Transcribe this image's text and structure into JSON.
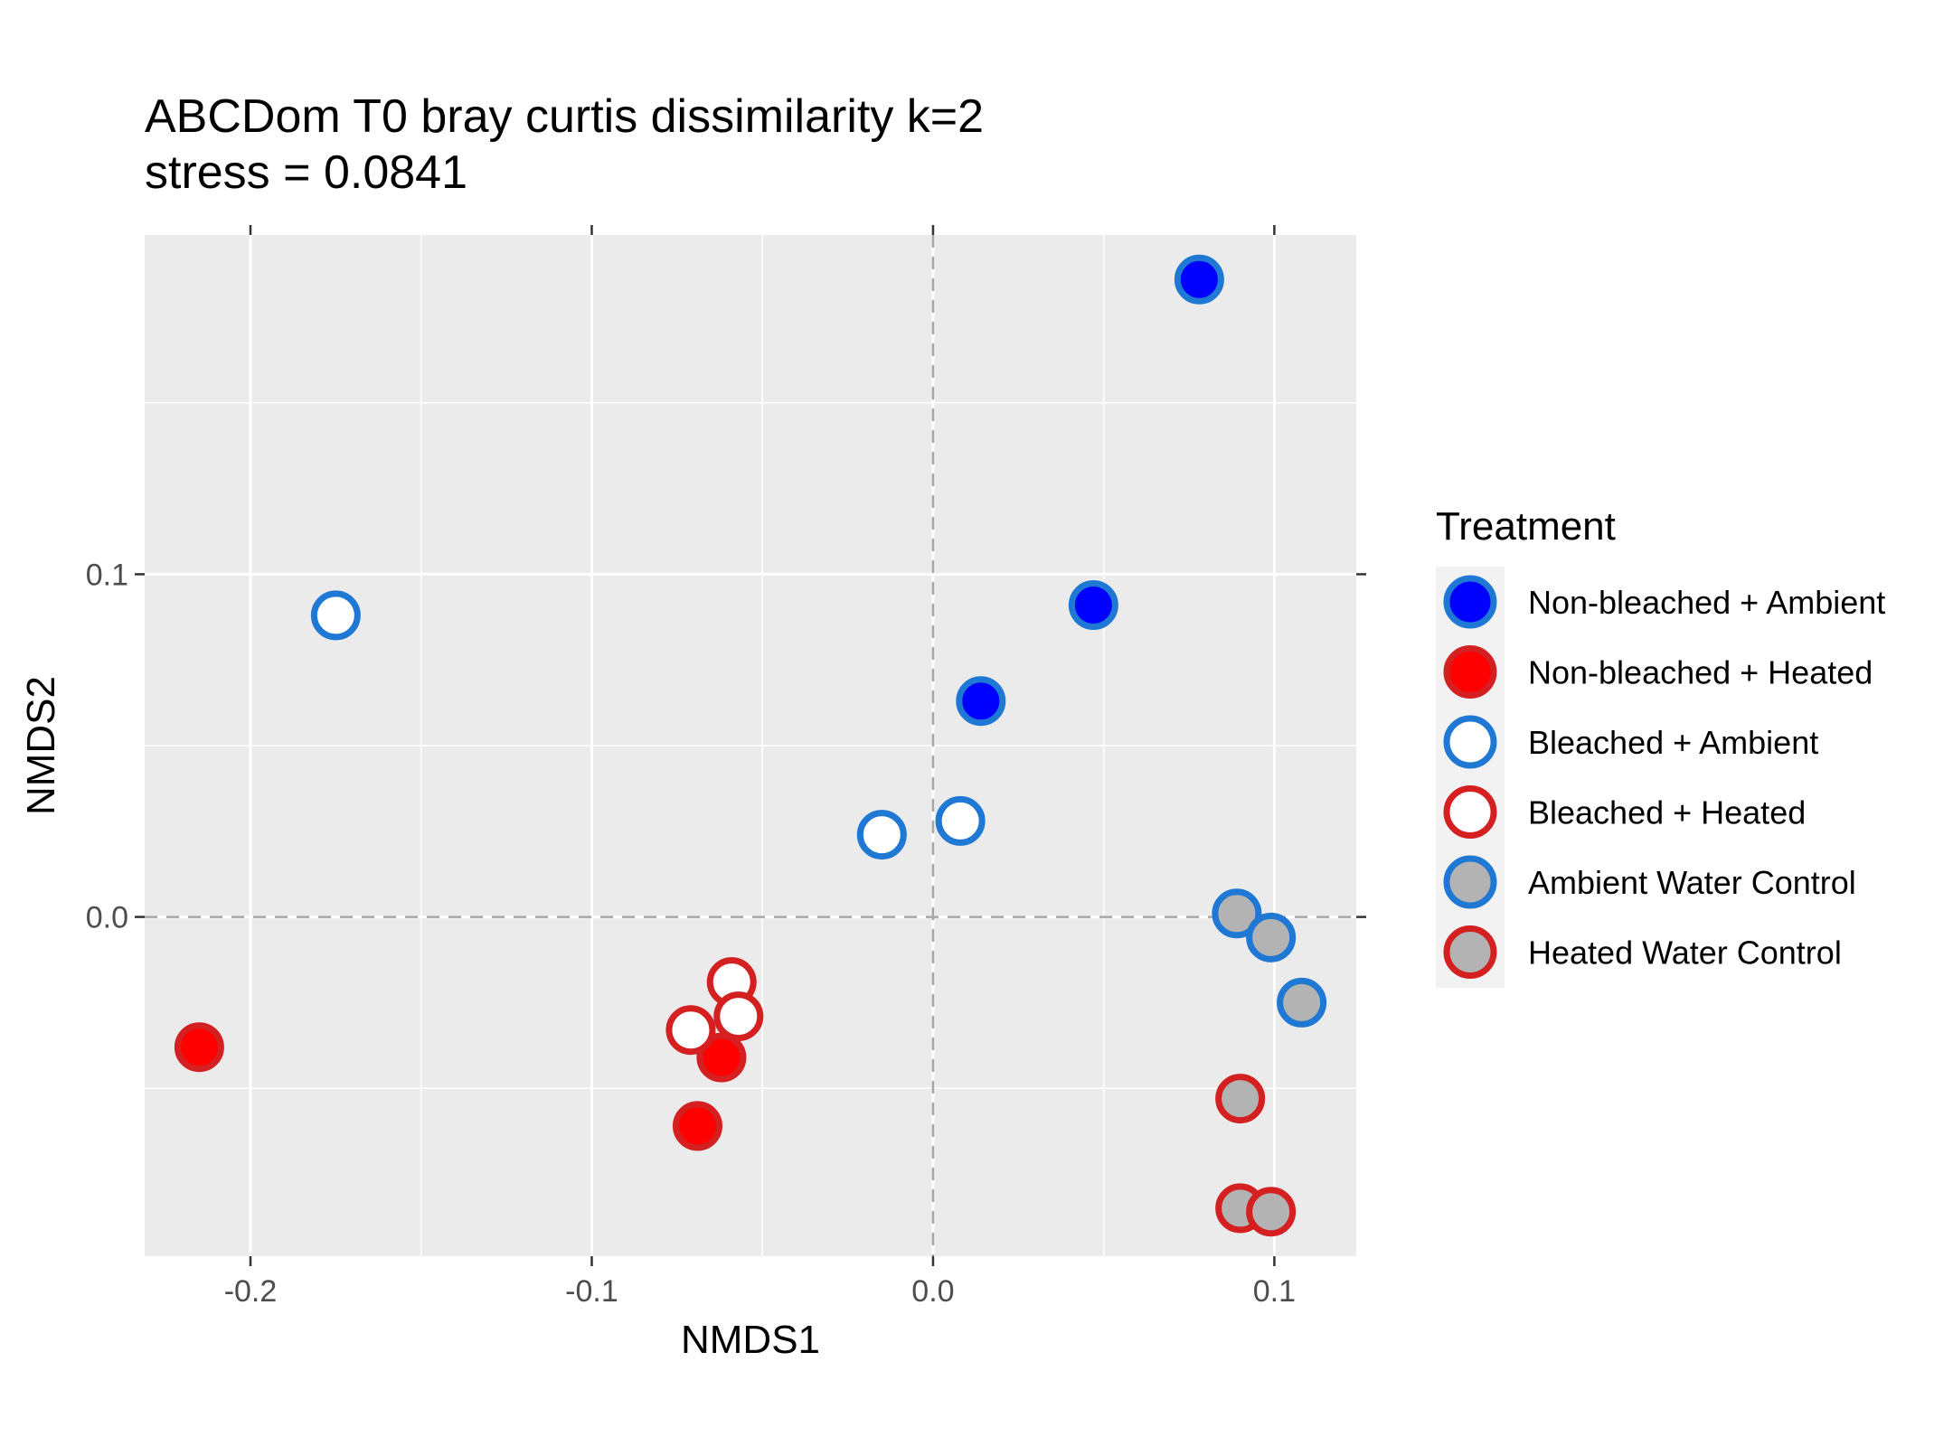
{
  "chart_data": {
    "type": "scatter",
    "title": "ABCDom T0 bray curtis dissimilarity k=2",
    "subtitle": "stress = 0.0841",
    "xlabel": "NMDS1",
    "ylabel": "NMDS2",
    "xlim": [
      -0.231,
      0.124
    ],
    "ylim": [
      -0.099,
      0.199
    ],
    "x_ticks": [
      -0.2,
      -0.1,
      0.0,
      0.1
    ],
    "x_tick_labels": [
      "-0.2",
      "-0.1",
      "0.0",
      "0.1"
    ],
    "y_ticks": [
      0.0,
      0.1
    ],
    "y_tick_labels": [
      "0.0",
      "0.1"
    ],
    "grid": true,
    "reference_lines": {
      "x": 0,
      "y": 0,
      "style": "dashed"
    },
    "legend": {
      "title": "Treatment",
      "position": "right"
    },
    "series": [
      {
        "name": "Non-bleached + Ambient",
        "fill": "#0000ff",
        "stroke": "#1f78d4",
        "points": [
          {
            "x": 0.078,
            "y": 0.186
          },
          {
            "x": 0.047,
            "y": 0.091
          },
          {
            "x": 0.014,
            "y": 0.063
          }
        ]
      },
      {
        "name": "Non-bleached + Heated",
        "fill": "#ff0000",
        "stroke": "#d42020",
        "points": [
          {
            "x": -0.215,
            "y": -0.038
          },
          {
            "x": -0.062,
            "y": -0.041
          },
          {
            "x": -0.069,
            "y": -0.061
          }
        ]
      },
      {
        "name": "Bleached + Ambient",
        "fill": "#ffffff",
        "stroke": "#1f78d4",
        "points": [
          {
            "x": -0.175,
            "y": 0.088
          },
          {
            "x": -0.015,
            "y": 0.024
          },
          {
            "x": 0.008,
            "y": 0.028
          }
        ]
      },
      {
        "name": "Bleached + Heated",
        "fill": "#ffffff",
        "stroke": "#d42020",
        "points": [
          {
            "x": -0.059,
            "y": -0.019
          },
          {
            "x": -0.057,
            "y": -0.029
          },
          {
            "x": -0.071,
            "y": -0.033
          }
        ]
      },
      {
        "name": "Ambient Water Control",
        "fill": "#b3b3b3",
        "stroke": "#1f78d4",
        "points": [
          {
            "x": 0.089,
            "y": 0.001
          },
          {
            "x": 0.099,
            "y": -0.006
          },
          {
            "x": 0.108,
            "y": -0.025
          }
        ]
      },
      {
        "name": "Heated Water Control",
        "fill": "#b3b3b3",
        "stroke": "#d42020",
        "points": [
          {
            "x": 0.09,
            "y": -0.053
          },
          {
            "x": 0.09,
            "y": -0.085
          },
          {
            "x": 0.099,
            "y": -0.086
          }
        ]
      }
    ]
  }
}
